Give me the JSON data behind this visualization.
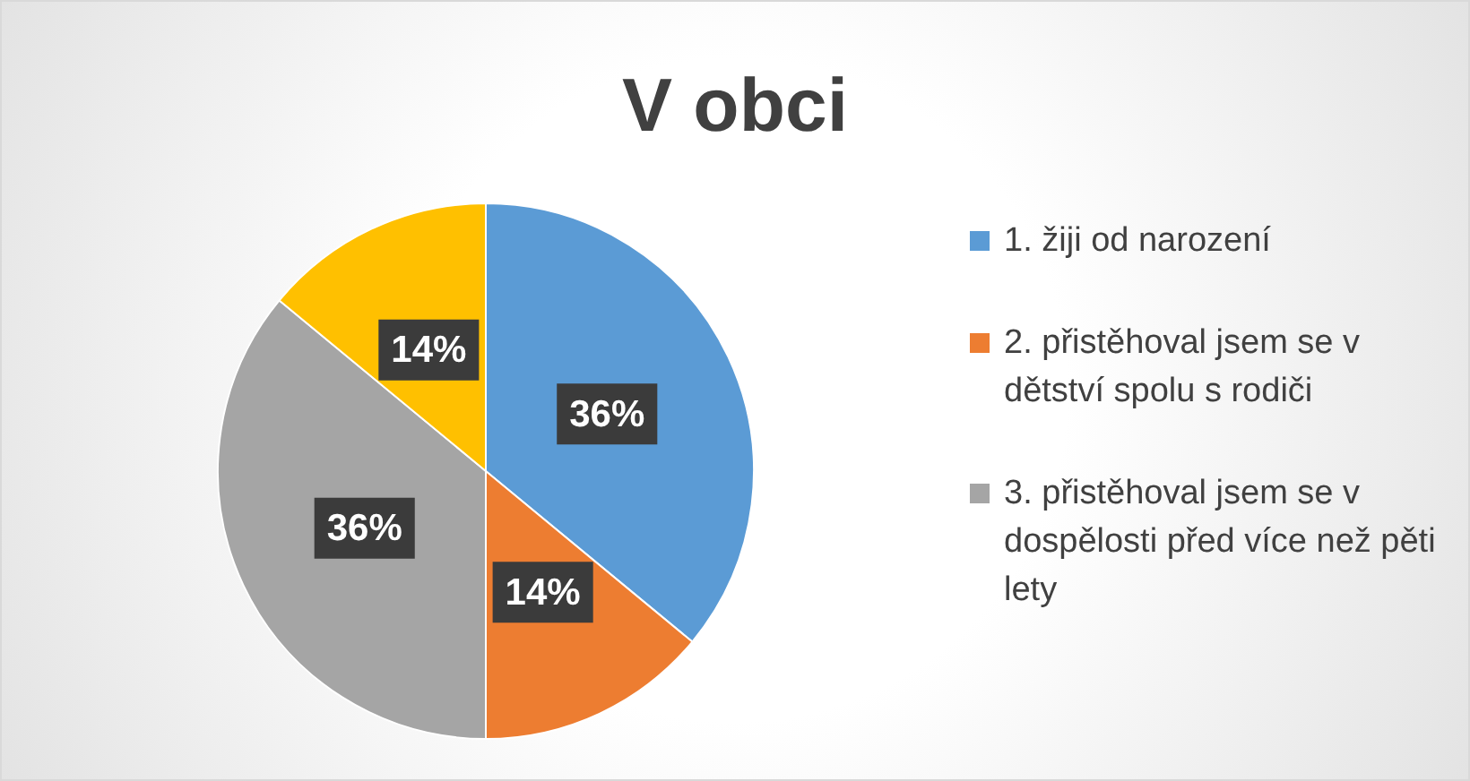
{
  "chart_data": {
    "type": "pie",
    "title": "V obci",
    "categories": [
      "1. žiji od narození",
      "2. přistěhoval jsem se v dětství spolu s rodiči",
      "3. přistěhoval jsem se v dospělosti před více než pěti lety",
      null
    ],
    "values": [
      36,
      14,
      36,
      14
    ],
    "colors": [
      "#5b9bd5",
      "#ed7d31",
      "#a5a5a5",
      "#ffc000"
    ],
    "value_labels": [
      "36%",
      "14%",
      "36%",
      "14%"
    ],
    "legend": "right"
  }
}
